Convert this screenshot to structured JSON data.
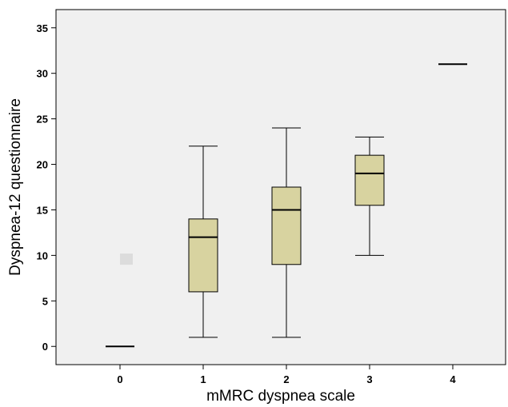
{
  "chart_data": {
    "type": "boxplot",
    "title": "",
    "xlabel": "mMRC dyspnea scale",
    "ylabel": "Dyspnea-12 questionnaire",
    "ylim": [
      -2,
      37
    ],
    "yticks": [
      0,
      5,
      10,
      15,
      20,
      25,
      30,
      35
    ],
    "categories": [
      "0",
      "1",
      "2",
      "3",
      "4"
    ],
    "boxes": [
      {
        "category": "0",
        "min": 0,
        "q1": 0,
        "median": 0,
        "q3": 0,
        "max": 0
      },
      {
        "category": "1",
        "min": 1,
        "q1": 6,
        "median": 12,
        "q3": 14,
        "max": 22
      },
      {
        "category": "2",
        "min": 1,
        "q1": 9,
        "median": 15,
        "q3": 17.5,
        "max": 24
      },
      {
        "category": "3",
        "min": 10,
        "q1": 15.5,
        "median": 19,
        "q3": 21,
        "max": 23
      },
      {
        "category": "4",
        "min": 31,
        "q1": 31,
        "median": 31,
        "q3": 31,
        "max": 31
      }
    ],
    "outliers": [
      {
        "category": "0",
        "value": 9.5
      }
    ],
    "grid": false,
    "legend": "none",
    "colors": {
      "plot_background": "#f0f0f0",
      "box_fill": "#d8d3a0",
      "outlier_marker": "#dcdcdc",
      "line": "#000000"
    }
  }
}
